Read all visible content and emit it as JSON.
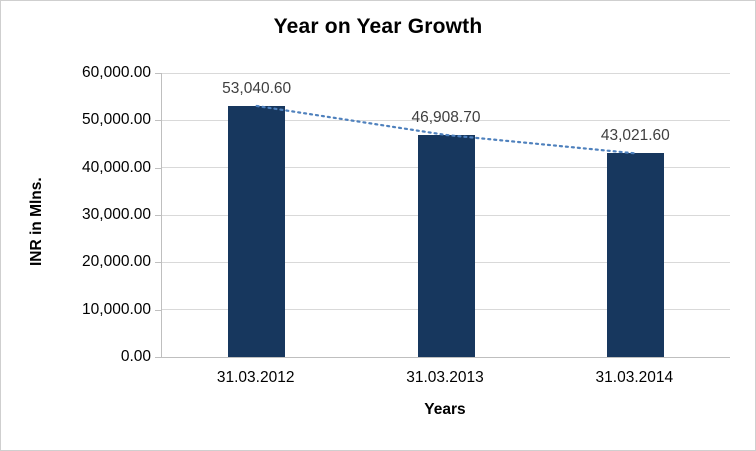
{
  "chart_data": {
    "type": "bar",
    "title": "Year on Year Growth",
    "categories": [
      "31.03.2012",
      "31.03.2013",
      "31.03.2014"
    ],
    "values": [
      53040.6,
      46908.7,
      43021.6
    ],
    "value_labels": [
      "53,040.60",
      "46,908.70",
      "43,021.60"
    ],
    "xlabel": "Years",
    "ylabel": "INR in Mlns.",
    "ylim": [
      0,
      60000
    ],
    "ytick_step": 10000,
    "ytick_labels": [
      "0.00",
      "10,000.00",
      "20,000.00",
      "30,000.00",
      "40,000.00",
      "50,000.00",
      "60,000.00"
    ],
    "grid": true,
    "legend_position": "none",
    "colors": {
      "bar": "#17375e",
      "trendline": "#4f81bd",
      "gridline": "#d9d9d9",
      "axis": "#bfbfbf",
      "data_label": "#3f3f3f",
      "chart_border": "#cfcfcf"
    }
  }
}
